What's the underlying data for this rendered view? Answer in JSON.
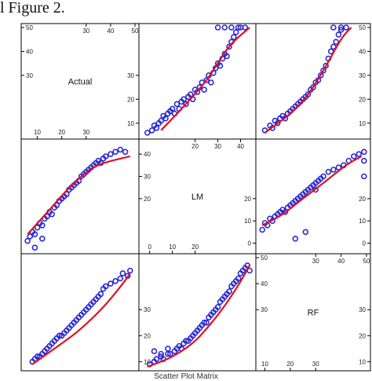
{
  "caption_top": "l Figure 2.",
  "caption_bottom": "Scatter Plot Matrix",
  "colors": {
    "points": "#2a2ad6",
    "smoother": "#e01020",
    "frame": "#000000"
  },
  "chart_data": {
    "type": "scatter",
    "title": "Scatter Plot Matrix",
    "variables": [
      "Actual",
      "LM",
      "RF"
    ],
    "grid": false,
    "smoother": "red loess curve on every off-diagonal panel",
    "ranges": {
      "Actual": [
        5,
        50
      ],
      "LM": [
        -3,
        45
      ],
      "RF": [
        8,
        50
      ]
    },
    "diagonal_ticks": {
      "Actual": {
        "bottom": [
          "10",
          "20",
          "30"
        ],
        "top": [
          "30",
          "40",
          "50"
        ],
        "right": [
          "10",
          "20",
          "30"
        ],
        "left": [
          "30",
          "40",
          "50"
        ]
      },
      "LM": {
        "bottom": [
          "0",
          "10",
          "20"
        ],
        "top": [
          "20",
          "30",
          "40"
        ],
        "right": [
          "0",
          "10",
          "20"
        ],
        "left": [
          "20",
          "30",
          "40"
        ]
      },
      "RF": {
        "bottom": [
          "10",
          "20",
          "30"
        ],
        "top": [
          "30",
          "40",
          "50"
        ],
        "right": [
          "10",
          "20",
          "30"
        ],
        "left": [
          "30",
          "40",
          "50"
        ]
      }
    },
    "outer_ticks": {
      "right_rows": [
        [
          "10",
          "20",
          "30",
          "40",
          "50"
        ],
        [
          "0",
          "10",
          "20"
        ],
        []
      ],
      "left_rows": [
        [],
        [],
        [
          "10",
          "20",
          "30"
        ]
      ]
    },
    "panels": [
      {
        "row": "Actual",
        "col": "LM",
        "curve": [
          [
            5,
            7
          ],
          [
            15,
            17
          ],
          [
            25,
            28
          ],
          [
            35,
            42
          ],
          [
            44,
            50
          ]
        ],
        "points": [
          [
            -1,
            6
          ],
          [
            1,
            7
          ],
          [
            2,
            9
          ],
          [
            3,
            8
          ],
          [
            4,
            10
          ],
          [
            5,
            11
          ],
          [
            6,
            13
          ],
          [
            7,
            12
          ],
          [
            8,
            14
          ],
          [
            9,
            15
          ],
          [
            10,
            16
          ],
          [
            11,
            14
          ],
          [
            12,
            18
          ],
          [
            13,
            16
          ],
          [
            14,
            19
          ],
          [
            15,
            20
          ],
          [
            16,
            18
          ],
          [
            17,
            21
          ],
          [
            18,
            22
          ],
          [
            19,
            20
          ],
          [
            20,
            24
          ],
          [
            21,
            23
          ],
          [
            22,
            25
          ],
          [
            23,
            27
          ],
          [
            24,
            24
          ],
          [
            25,
            28
          ],
          [
            26,
            30
          ],
          [
            27,
            27
          ],
          [
            28,
            31
          ],
          [
            29,
            33
          ],
          [
            30,
            35
          ],
          [
            31,
            34
          ],
          [
            32,
            37
          ],
          [
            33,
            39
          ],
          [
            34,
            38
          ],
          [
            35,
            42
          ],
          [
            36,
            44
          ],
          [
            37,
            46
          ],
          [
            38,
            48
          ],
          [
            39,
            50
          ],
          [
            40,
            50
          ],
          [
            42,
            50
          ],
          [
            30,
            50
          ],
          [
            33,
            50
          ],
          [
            36,
            50
          ]
        ]
      },
      {
        "row": "Actual",
        "col": "RF",
        "curve": [
          [
            10,
            6
          ],
          [
            20,
            14
          ],
          [
            27,
            22
          ],
          [
            33,
            32
          ],
          [
            40,
            45
          ],
          [
            44,
            50
          ]
        ],
        "points": [
          [
            10,
            7
          ],
          [
            12,
            9
          ],
          [
            13,
            8
          ],
          [
            14,
            11
          ],
          [
            15,
            10
          ],
          [
            16,
            12
          ],
          [
            17,
            13
          ],
          [
            18,
            12
          ],
          [
            19,
            14
          ],
          [
            20,
            15
          ],
          [
            21,
            16
          ],
          [
            22,
            17
          ],
          [
            23,
            18
          ],
          [
            24,
            19
          ],
          [
            25,
            20
          ],
          [
            26,
            21
          ],
          [
            27,
            22
          ],
          [
            28,
            24
          ],
          [
            29,
            25
          ],
          [
            30,
            27
          ],
          [
            31,
            28
          ],
          [
            32,
            30
          ],
          [
            33,
            32
          ],
          [
            34,
            34
          ],
          [
            35,
            37
          ],
          [
            36,
            40
          ],
          [
            37,
            42
          ],
          [
            38,
            44
          ],
          [
            39,
            47
          ],
          [
            40,
            49
          ],
          [
            37,
            50
          ],
          [
            40,
            50
          ],
          [
            42,
            50
          ]
        ]
      },
      {
        "row": "LM",
        "col": "Actual",
        "curve": [
          [
            6,
            4
          ],
          [
            15,
            15
          ],
          [
            25,
            27
          ],
          [
            35,
            35
          ],
          [
            48,
            39
          ]
        ],
        "points": [
          [
            6,
            1
          ],
          [
            7,
            3
          ],
          [
            8,
            5
          ],
          [
            9,
            4
          ],
          [
            10,
            7
          ],
          [
            11,
            9
          ],
          [
            12,
            8
          ],
          [
            13,
            11
          ],
          [
            14,
            12
          ],
          [
            15,
            14
          ],
          [
            16,
            13
          ],
          [
            17,
            16
          ],
          [
            18,
            17
          ],
          [
            19,
            19
          ],
          [
            20,
            20
          ],
          [
            21,
            21
          ],
          [
            22,
            22
          ],
          [
            23,
            24
          ],
          [
            24,
            25
          ],
          [
            25,
            26
          ],
          [
            26,
            27
          ],
          [
            27,
            28
          ],
          [
            28,
            30
          ],
          [
            29,
            31
          ],
          [
            30,
            32
          ],
          [
            31,
            33
          ],
          [
            32,
            34
          ],
          [
            33,
            35
          ],
          [
            34,
            36
          ],
          [
            35,
            37
          ],
          [
            36,
            36
          ],
          [
            37,
            38
          ],
          [
            38,
            39
          ],
          [
            40,
            40
          ],
          [
            42,
            41
          ],
          [
            44,
            42
          ],
          [
            46,
            41
          ],
          [
            12,
            2
          ],
          [
            9,
            -2
          ]
        ]
      },
      {
        "row": "LM",
        "col": "RF",
        "curve": [
          [
            9,
            8
          ],
          [
            17,
            13
          ],
          [
            25,
            20
          ],
          [
            33,
            27
          ],
          [
            42,
            35
          ],
          [
            48,
            39
          ]
        ],
        "points": [
          [
            9,
            6
          ],
          [
            10,
            9
          ],
          [
            11,
            8
          ],
          [
            12,
            11
          ],
          [
            13,
            10
          ],
          [
            14,
            12
          ],
          [
            15,
            13
          ],
          [
            16,
            14
          ],
          [
            17,
            15
          ],
          [
            18,
            14
          ],
          [
            19,
            16
          ],
          [
            20,
            17
          ],
          [
            21,
            18
          ],
          [
            22,
            19
          ],
          [
            23,
            20
          ],
          [
            24,
            21
          ],
          [
            25,
            22
          ],
          [
            26,
            23
          ],
          [
            27,
            24
          ],
          [
            28,
            25
          ],
          [
            29,
            26
          ],
          [
            30,
            27
          ],
          [
            31,
            28
          ],
          [
            32,
            29
          ],
          [
            33,
            30
          ],
          [
            35,
            32
          ],
          [
            37,
            33
          ],
          [
            39,
            34
          ],
          [
            41,
            35
          ],
          [
            43,
            37
          ],
          [
            45,
            39
          ],
          [
            47,
            40
          ],
          [
            49,
            41
          ],
          [
            49,
            37
          ],
          [
            49,
            30
          ],
          [
            22,
            2
          ],
          [
            26,
            5
          ],
          [
            30,
            24
          ]
        ]
      },
      {
        "row": "RF",
        "col": "Actual",
        "curve": [
          [
            8,
            9
          ],
          [
            17,
            15
          ],
          [
            27,
            22
          ],
          [
            37,
            31
          ],
          [
            45,
            40
          ],
          [
            48,
            44
          ]
        ],
        "points": [
          [
            8,
            10
          ],
          [
            9,
            11
          ],
          [
            10,
            12
          ],
          [
            11,
            12
          ],
          [
            12,
            13
          ],
          [
            13,
            14
          ],
          [
            14,
            15
          ],
          [
            15,
            16
          ],
          [
            16,
            17
          ],
          [
            17,
            18
          ],
          [
            18,
            19
          ],
          [
            19,
            20
          ],
          [
            20,
            20
          ],
          [
            21,
            21
          ],
          [
            22,
            22
          ],
          [
            23,
            23
          ],
          [
            24,
            24
          ],
          [
            25,
            25
          ],
          [
            26,
            26
          ],
          [
            27,
            27
          ],
          [
            28,
            28
          ],
          [
            29,
            29
          ],
          [
            30,
            30
          ],
          [
            31,
            31
          ],
          [
            32,
            32
          ],
          [
            33,
            33
          ],
          [
            34,
            34
          ],
          [
            35,
            35
          ],
          [
            36,
            36
          ],
          [
            37,
            38
          ],
          [
            38,
            39
          ],
          [
            40,
            40
          ],
          [
            42,
            41
          ],
          [
            44,
            42
          ],
          [
            45,
            44
          ],
          [
            47,
            43
          ],
          [
            48,
            45
          ]
        ]
      },
      {
        "row": "RF",
        "col": "LM",
        "curve": [
          [
            -1,
            8
          ],
          [
            10,
            12
          ],
          [
            20,
            18
          ],
          [
            30,
            28
          ],
          [
            38,
            38
          ],
          [
            44,
            47
          ]
        ],
        "points": [
          [
            0,
            9
          ],
          [
            2,
            10
          ],
          [
            3,
            11
          ],
          [
            5,
            12
          ],
          [
            6,
            11
          ],
          [
            8,
            13
          ],
          [
            9,
            13
          ],
          [
            11,
            14
          ],
          [
            12,
            15
          ],
          [
            13,
            16
          ],
          [
            14,
            15
          ],
          [
            15,
            17
          ],
          [
            16,
            18
          ],
          [
            17,
            18
          ],
          [
            18,
            19
          ],
          [
            19,
            20
          ],
          [
            20,
            21
          ],
          [
            21,
            22
          ],
          [
            22,
            23
          ],
          [
            23,
            24
          ],
          [
            24,
            25
          ],
          [
            25,
            25
          ],
          [
            26,
            27
          ],
          [
            27,
            28
          ],
          [
            28,
            29
          ],
          [
            29,
            30
          ],
          [
            30,
            31
          ],
          [
            31,
            33
          ],
          [
            32,
            34
          ],
          [
            33,
            35
          ],
          [
            34,
            36
          ],
          [
            35,
            37
          ],
          [
            36,
            39
          ],
          [
            37,
            40
          ],
          [
            38,
            41
          ],
          [
            39,
            42
          ],
          [
            40,
            44
          ],
          [
            41,
            45
          ],
          [
            42,
            46
          ],
          [
            43,
            47
          ],
          [
            44,
            45
          ],
          [
            2,
            14
          ],
          [
            5,
            13
          ],
          [
            8,
            15
          ]
        ]
      }
    ]
  }
}
